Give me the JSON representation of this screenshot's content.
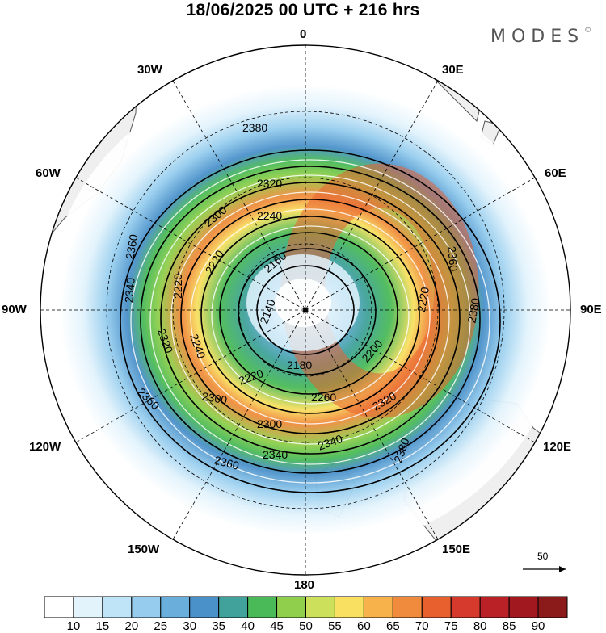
{
  "header": {
    "title": "18/06/2025  00 UTC  + 216 hrs",
    "brand": "MODES",
    "brand_mark": "©"
  },
  "map": {
    "projection": "south-polar-stereographic",
    "longitude_labels": [
      "0",
      "30E",
      "60E",
      "90E",
      "120E",
      "150E",
      "180",
      "150W",
      "120W",
      "90W",
      "60W",
      "30W"
    ],
    "contour_labels": [
      "2380",
      "2320",
      "2300",
      "2240",
      "2360",
      "2220",
      "2160",
      "2340",
      "2220",
      "2140",
      "2180",
      "2200",
      "2220",
      "2320",
      "2240",
      "2220",
      "2300",
      "2260",
      "2320",
      "2300",
      "2340",
      "2340",
      "2360",
      "2380",
      "2360",
      "2380",
      "2360"
    ],
    "vector_reference": "50",
    "colors": {
      "land": "#efefef",
      "coast": "#555555",
      "grid": "#000000"
    }
  },
  "legend": {
    "levels": [
      "10",
      "15",
      "20",
      "25",
      "30",
      "35",
      "40",
      "45",
      "50",
      "55",
      "60",
      "65",
      "70",
      "75",
      "80",
      "85",
      "90"
    ],
    "colors": [
      "#ffffff",
      "#e2f3fc",
      "#bfe4f8",
      "#96cdee",
      "#6aaedc",
      "#4a90c9",
      "#40a29a",
      "#4aba58",
      "#8fcf4c",
      "#cde05c",
      "#f9e061",
      "#f8b24c",
      "#f08b3d",
      "#e9602f",
      "#d53a2d",
      "#b92127",
      "#a1181f",
      "#8b1a1a"
    ]
  }
}
